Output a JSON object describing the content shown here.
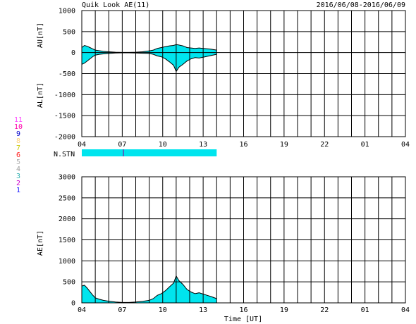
{
  "header": {
    "title": "Quik Look AE(11)",
    "date_range": "2016/06/08-2016/06/09"
  },
  "x_axis": {
    "label": "Time [UT]",
    "ticks": [
      "04",
      "07",
      "10",
      "13",
      "16",
      "19",
      "22",
      "01",
      "04"
    ],
    "range_hours": [
      4,
      28
    ]
  },
  "station_panel": {
    "label": "N.STN",
    "fill_color": "#00e5ee",
    "marker_color": "#6a3fb0",
    "fill_until_hour": 14.0,
    "marker_hour": 7.05
  },
  "station_legend": [
    {
      "label": "11",
      "color": "#ff44ff"
    },
    {
      "label": "10",
      "color": "#ff00aa"
    },
    {
      "label": "9",
      "color": "#0000cc"
    },
    {
      "label": "8",
      "color": "#ffd27a"
    },
    {
      "label": "7",
      "color": "#c8c800"
    },
    {
      "label": "6",
      "color": "#ff2020"
    },
    {
      "label": "5",
      "color": "#b0b0b0"
    },
    {
      "label": "4",
      "color": "#a0a0a0"
    },
    {
      "label": "3",
      "color": "#30b0b0"
    },
    {
      "label": "2",
      "color": "#cc00cc"
    },
    {
      "label": "1",
      "color": "#2020ff"
    }
  ],
  "colors": {
    "fill": "#00e5ee",
    "line": "#000000",
    "grid": "#000000"
  },
  "chart_data": [
    {
      "type": "area",
      "name": "AU/AL",
      "ylabel_top": "AU[nT]",
      "ylabel_bottom": "AL[nT]",
      "ylim": [
        -2000,
        1000
      ],
      "yticks": [
        1000,
        500,
        0,
        -500,
        -1000,
        -1500,
        -2000
      ],
      "series": [
        {
          "name": "AU",
          "x": [
            4.0,
            4.2,
            4.4,
            4.6,
            4.8,
            5.0,
            5.3,
            5.6,
            6.0,
            6.5,
            7.0,
            7.5,
            8.0,
            8.5,
            9.0,
            9.3,
            9.6,
            9.9,
            10.2,
            10.5,
            10.8,
            11.0,
            11.2,
            11.5,
            11.8,
            12.1,
            12.4,
            12.7,
            13.0,
            13.3,
            13.6,
            14.0
          ],
          "y": [
            120,
            170,
            150,
            120,
            90,
            60,
            45,
            30,
            20,
            10,
            5,
            5,
            10,
            20,
            40,
            60,
            100,
            120,
            140,
            160,
            170,
            190,
            180,
            160,
            120,
            110,
            100,
            110,
            100,
            90,
            80,
            60
          ]
        },
        {
          "name": "AL",
          "x": [
            4.0,
            4.2,
            4.4,
            4.6,
            4.8,
            5.0,
            5.3,
            5.6,
            6.0,
            6.5,
            7.0,
            7.5,
            8.0,
            8.5,
            9.0,
            9.3,
            9.6,
            9.9,
            10.2,
            10.5,
            10.8,
            11.0,
            11.2,
            11.5,
            11.8,
            12.1,
            12.4,
            12.7,
            13.0,
            13.3,
            13.6,
            14.0
          ],
          "y": [
            -280,
            -250,
            -200,
            -150,
            -100,
            -60,
            -40,
            -30,
            -20,
            -10,
            -5,
            -5,
            -10,
            -15,
            -20,
            -40,
            -80,
            -100,
            -150,
            -220,
            -300,
            -450,
            -350,
            -280,
            -200,
            -150,
            -120,
            -130,
            -110,
            -90,
            -70,
            -40
          ]
        }
      ]
    },
    {
      "type": "area",
      "name": "AE",
      "ylabel": "AE[nT]",
      "ylim": [
        0,
        3000
      ],
      "yticks": [
        3000,
        2500,
        2000,
        1500,
        1000,
        500,
        0
      ],
      "series": [
        {
          "name": "AE",
          "x": [
            4.0,
            4.2,
            4.4,
            4.6,
            4.8,
            5.0,
            5.3,
            5.6,
            6.0,
            6.5,
            7.0,
            7.5,
            8.0,
            8.5,
            9.0,
            9.3,
            9.6,
            9.9,
            10.2,
            10.5,
            10.8,
            11.0,
            11.2,
            11.5,
            11.8,
            12.1,
            12.4,
            12.7,
            13.0,
            13.3,
            13.6,
            14.0
          ],
          "y": [
            400,
            420,
            350,
            270,
            190,
            120,
            85,
            60,
            40,
            20,
            10,
            10,
            20,
            35,
            60,
            100,
            180,
            220,
            290,
            380,
            470,
            640,
            530,
            440,
            320,
            260,
            220,
            240,
            210,
            180,
            150,
            100
          ]
        }
      ]
    }
  ]
}
